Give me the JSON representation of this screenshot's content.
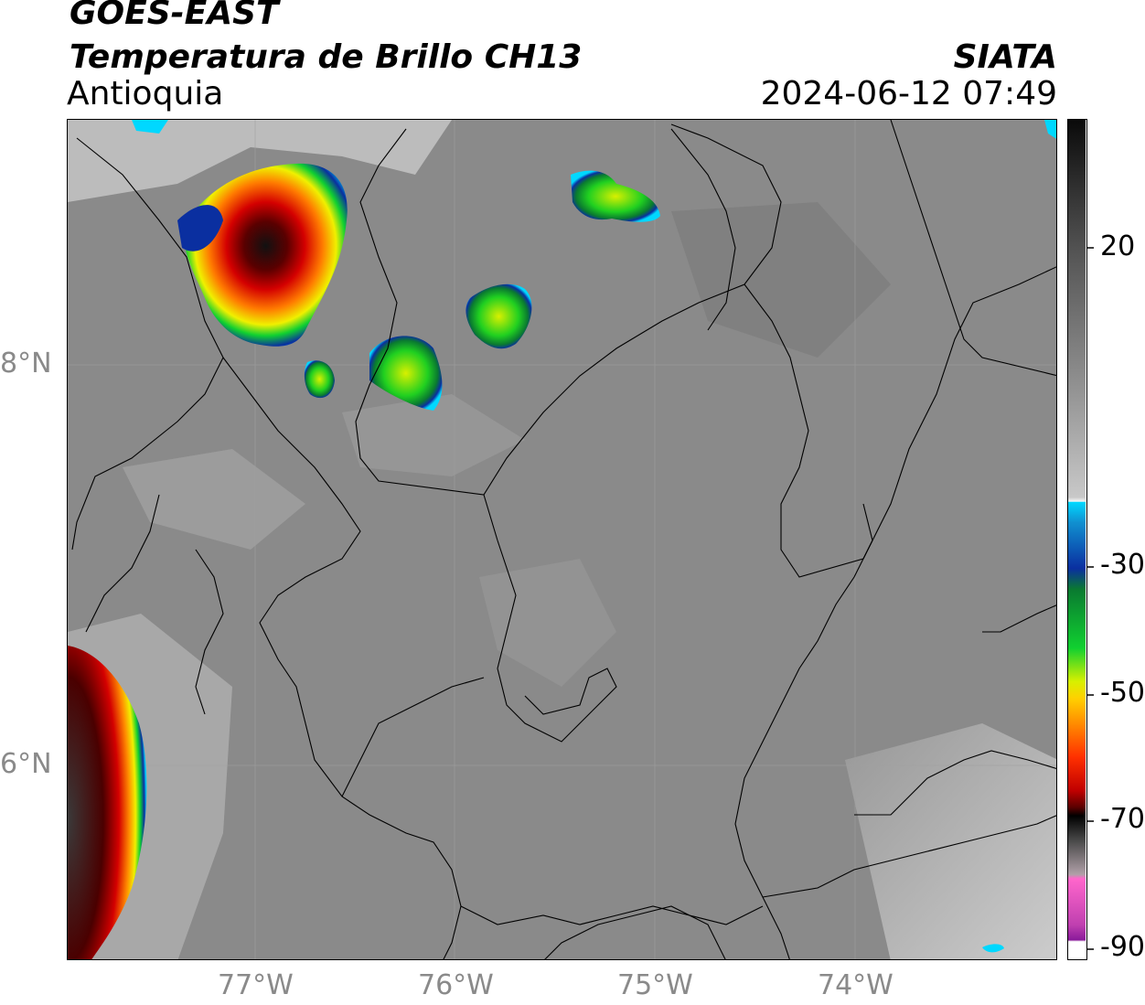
{
  "header": {
    "satellite": "GOES-EAST",
    "product": "Temperatura de Brillo CH13",
    "region": "Antioquia",
    "agency": "SIATA",
    "timestamp": "2024-06-12 07:49"
  },
  "map": {
    "longitude_labels": [
      "77°W",
      "76°W",
      "75°W",
      "74°W"
    ],
    "latitude_labels": [
      "8°N",
      "6°N"
    ],
    "background": "#8c8c8c",
    "border_color": "#000000"
  },
  "colorbar": {
    "tick_labels": [
      "20",
      "-30",
      "-50",
      "-70",
      "-90"
    ],
    "colors": {
      "warm": "#6e6e6e",
      "cold_cloud": "#ffffff",
      "cyan": "#00d8ff",
      "blue": "#0a2fa0",
      "green": "#10d030",
      "yellow": "#f0f000",
      "orange": "#ff8c00",
      "red": "#e00000",
      "dark_red": "#5a0000",
      "black": "#000000",
      "pink": "#ff66cc",
      "purple": "#a020a0"
    }
  }
}
